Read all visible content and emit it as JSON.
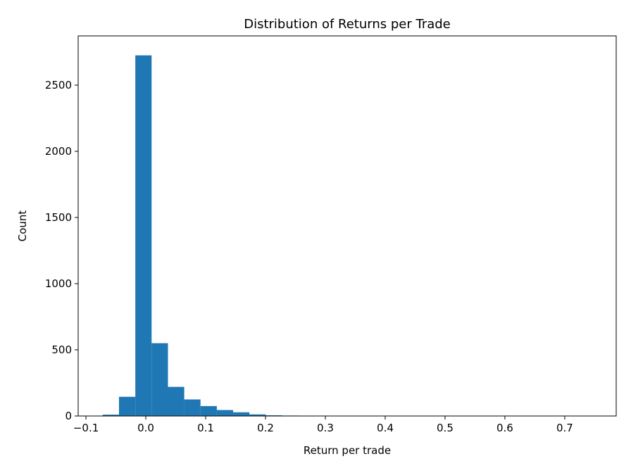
{
  "chart_data": {
    "type": "histogram",
    "title": "Distribution of Returns per Trade",
    "x_label": "Return per trade",
    "y_label": "Count",
    "color": "#1f77b4",
    "bins": [
      -0.072,
      -0.0448,
      -0.0175,
      0.0097,
      0.037,
      0.0642,
      0.0914,
      0.1187,
      0.1459,
      0.1732,
      0.2004,
      0.2276,
      0.2549,
      0.2821,
      0.3094,
      0.3366,
      0.3638,
      0.3911,
      0.4183,
      0.4456,
      0.4728,
      0.5,
      0.5273,
      0.5545,
      0.5818,
      0.609,
      0.6362,
      0.6635,
      0.6907,
      0.718,
      0.7452
    ],
    "values": [
      10,
      145,
      2725,
      550,
      220,
      125,
      75,
      45,
      28,
      12,
      5,
      3,
      2,
      1,
      1,
      0,
      0,
      0,
      0,
      0,
      0,
      0,
      0,
      0,
      0,
      0,
      0,
      0,
      0,
      1
    ],
    "xlim": [
      -0.113,
      0.786
    ],
    "ylim": [
      0,
      2872
    ],
    "xticks": [
      {
        "value": -0.1,
        "label": "−0.1"
      },
      {
        "value": 0,
        "label": "0.0"
      },
      0.1,
      0.2,
      0.3,
      0.4,
      0.5,
      0.6,
      0.7
    ],
    "yticks": [
      0,
      500,
      1000,
      1500,
      2000,
      2500
    ]
  }
}
